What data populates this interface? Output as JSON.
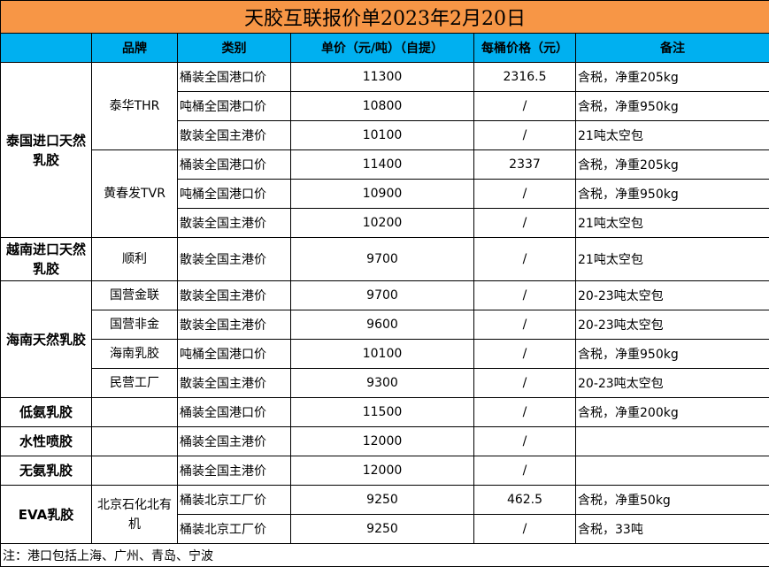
{
  "title": "天胶互联报价单2023年2月20日",
  "headers": [
    "",
    "品牌",
    "类别",
    "单价（元/吨）（自提）",
    "每桶价格（元）",
    "备注"
  ],
  "groups": [
    {
      "category": "泰国进口天然乳胶",
      "brands": [
        {
          "name": "泰华THR",
          "rows": [
            {
              "type": "桶装全国港口价",
              "price": "11300",
              "per_barrel": "2316.5",
              "note": "含税，净重205kg"
            },
            {
              "type": "吨桶全国港口价",
              "price": "10800",
              "per_barrel": "/",
              "note": "含税，净重950kg"
            },
            {
              "type": "散装全国主港价",
              "price": "10100",
              "per_barrel": "/",
              "note": "21吨太空包"
            }
          ]
        },
        {
          "name": "黄春发TVR",
          "rows": [
            {
              "type": "桶装全国港口价",
              "price": "11400",
              "per_barrel": "2337",
              "note": "含税，净重205kg"
            },
            {
              "type": "吨桶全国港口价",
              "price": "10900",
              "per_barrel": "/",
              "note": "含税，净重950kg"
            },
            {
              "type": "散装全国主港价",
              "price": "10200",
              "per_barrel": "/",
              "note": "21吨太空包"
            }
          ]
        }
      ]
    },
    {
      "category": "越南进口天然乳胶",
      "brands": [
        {
          "name": "顺利",
          "rows": [
            {
              "type": " 散装全国主港价",
              "price": "9700",
              "per_barrel": "/",
              "note": "21吨太空包",
              "tall": true
            }
          ]
        }
      ]
    },
    {
      "category": "海南天然乳胶",
      "brands": [
        {
          "name": "国营金联",
          "rows": [
            {
              "type": "散装全国主港价",
              "price": "9700",
              "per_barrel": "/",
              "note": "20-23吨太空包"
            }
          ]
        },
        {
          "name": "国营非金",
          "rows": [
            {
              "type": "散装全国主港价",
              "price": "9600",
              "per_barrel": "/",
              "note": "20-23吨太空包"
            }
          ]
        },
        {
          "name": "海南乳胶",
          "rows": [
            {
              "type": "吨桶全国港口价",
              "price": "10100",
              "per_barrel": "/",
              "note": "含税，净重950kg"
            }
          ]
        },
        {
          "name": "民营工厂",
          "rows": [
            {
              "type": "散装全国主港价",
              "price": "9300",
              "per_barrel": "/",
              "note": "20-23吨太空包"
            }
          ]
        }
      ]
    },
    {
      "category": "低氨乳胶",
      "brands": [
        {
          "name": "",
          "rows": [
            {
              "type": "桶装全国港口价",
              "price": "11500",
              "per_barrel": "/",
              "note": "含税，净重200kg"
            }
          ]
        }
      ]
    },
    {
      "category": "水性喷胶",
      "brands": [
        {
          "name": "",
          "rows": [
            {
              "type": "桶装全国主港价",
              "price": "12000",
              "per_barrel": "/",
              "note": ""
            }
          ]
        }
      ]
    },
    {
      "category": "无氨乳胶",
      "brands": [
        {
          "name": "",
          "rows": [
            {
              "type": "桶装全国主港价",
              "price": "12000",
              "per_barrel": "/",
              "note": ""
            }
          ]
        }
      ]
    },
    {
      "category": "EVA乳胶",
      "brands": [
        {
          "name": "北京石化北有机",
          "rows": [
            {
              "type": "桶装北京工厂价",
              "price": "9250",
              "per_barrel": "462.5",
              "note": "含税，净重50kg"
            },
            {
              "type": "桶装北京工厂价",
              "price": "9250",
              "per_barrel": "/",
              "note": "含税，33吨"
            }
          ]
        }
      ]
    }
  ],
  "footnote": "注：港口包括上海、广州、青岛、宁波",
  "colors": {
    "title_bg": "#f79646",
    "header_bg": "#00b0f0"
  }
}
